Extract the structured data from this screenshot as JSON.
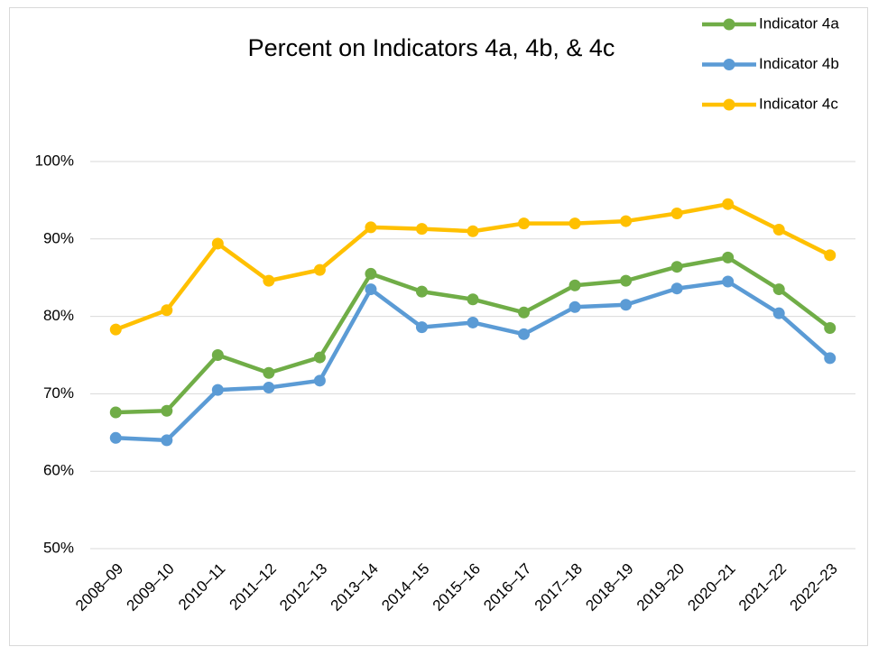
{
  "chart_data": {
    "type": "line",
    "title": "Percent on Indicators 4a, 4b, & 4c",
    "categories": [
      "2008–09",
      "2009–10",
      "2010–11",
      "2011–12",
      "2012–13",
      "2013–14",
      "2014–15",
      "2015–16",
      "2016–17",
      "2017–18",
      "2018–19",
      "2019–20",
      "2020–21",
      "2021–22",
      "2022–23"
    ],
    "series": [
      {
        "name": "Indicator 4a",
        "color": "#70ad47",
        "values": [
          67.6,
          67.8,
          75.0,
          72.7,
          74.7,
          85.5,
          83.2,
          82.2,
          80.5,
          84.0,
          84.6,
          86.4,
          87.6,
          83.5,
          78.5
        ]
      },
      {
        "name": "Indicator 4b",
        "color": "#5b9bd5",
        "values": [
          64.3,
          64.0,
          70.5,
          70.8,
          71.7,
          83.5,
          78.6,
          79.2,
          77.7,
          81.2,
          81.5,
          83.6,
          84.5,
          80.4,
          74.6
        ]
      },
      {
        "name": "Indicator 4c",
        "color": "#ffc000",
        "values": [
          78.3,
          80.8,
          89.4,
          84.6,
          86.0,
          91.5,
          91.3,
          91.0,
          92.0,
          92.0,
          92.3,
          93.3,
          94.5,
          91.2,
          87.9
        ]
      }
    ],
    "ylim": [
      50,
      100
    ],
    "yticks": [
      {
        "value": 50,
        "label": "50%"
      },
      {
        "value": 60,
        "label": "60%"
      },
      {
        "value": 70,
        "label": "70%"
      },
      {
        "value": 80,
        "label": "80%"
      },
      {
        "value": 90,
        "label": "90%"
      },
      {
        "value": 100,
        "label": "100%"
      }
    ],
    "grid": true,
    "legend": "top-right"
  }
}
